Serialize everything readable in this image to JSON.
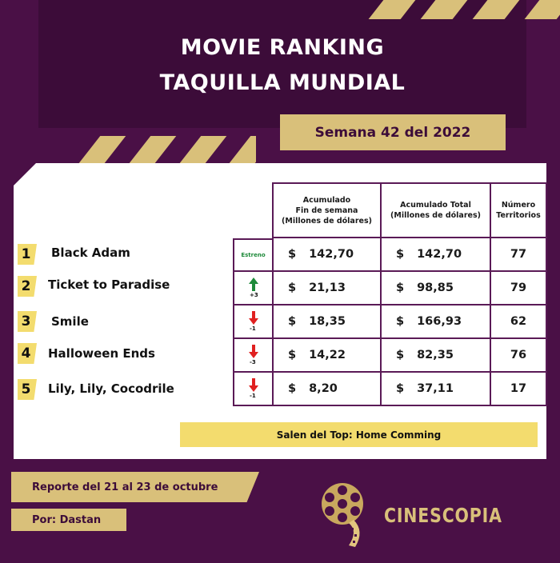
{
  "header": {
    "title_line1": "MOVIE RANKING",
    "title_line2": "TAQUILLA MUNDIAL",
    "week": "Semana 42 del 2022"
  },
  "table": {
    "columns": [
      {
        "line1": "Acumulado",
        "line2": "Fin de semana",
        "line3": "(Millones de dólares)"
      },
      {
        "line1": "Acumulado Total",
        "line2": "(Millones de dólares)"
      },
      {
        "line1": "Número",
        "line2": "Territorios"
      }
    ],
    "currency": "$",
    "rows": [
      {
        "rank": "1",
        "title": "Black Adam",
        "trend": "new",
        "trend_label": "Estreno",
        "weekend": "142,70",
        "total": "142,70",
        "territories": "77"
      },
      {
        "rank": "2",
        "title": "Ticket to Paradise",
        "trend": "up",
        "trend_label": "+3",
        "weekend": "21,13",
        "total": "98,85",
        "territories": "79"
      },
      {
        "rank": "3",
        "title": "Smile",
        "trend": "down",
        "trend_label": "-1",
        "weekend": "18,35",
        "total": "166,93",
        "territories": "62"
      },
      {
        "rank": "4",
        "title": "Halloween Ends",
        "trend": "down",
        "trend_label": "-3",
        "weekend": "14,22",
        "total": "82,35",
        "territories": "76"
      },
      {
        "rank": "5",
        "title": "Lily, Lily, Cocodrile",
        "trend": "down",
        "trend_label": "-1",
        "weekend": "8,20",
        "total": "37,11",
        "territories": "17"
      }
    ],
    "out_of_top": "Salen del Top: Home Comming"
  },
  "footer": {
    "report": "Reporte del 21 al 23 de octubre",
    "author": "Por: Dastan",
    "brand": "CINESCOPIA",
    "logo_icon": "film-reel-icon"
  },
  "colors": {
    "background": "#4a1046",
    "gold": "#d9c07a",
    "yellow": "#f3dc6e",
    "up": "#1e8a3a",
    "down": "#e02020"
  }
}
